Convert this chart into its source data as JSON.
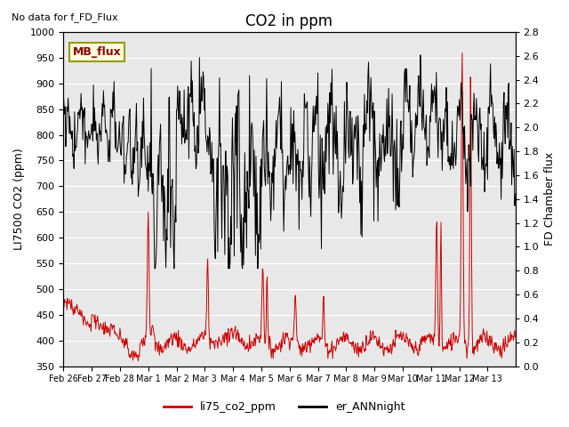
{
  "title": "CO2 in ppm",
  "ylabel_left": "LI7500 CO2 (ppm)",
  "ylabel_right": "FD Chamber flux",
  "ylim_left": [
    350,
    1000
  ],
  "ylim_right": [
    0.0,
    2.8
  ],
  "no_data_text": "No data for f_FD_Flux",
  "mb_flux_label": "MB_flux",
  "legend_labels": [
    "li75_co2_ppm",
    "er_ANNnight"
  ],
  "red_color": "#cc0000",
  "black_color": "#000000",
  "bg_color": "#f0f0f0",
  "plot_bg_color": "#e8e8e8",
  "grid_color": "#ffffff",
  "figsize": [
    6.4,
    4.8
  ],
  "dpi": 100
}
